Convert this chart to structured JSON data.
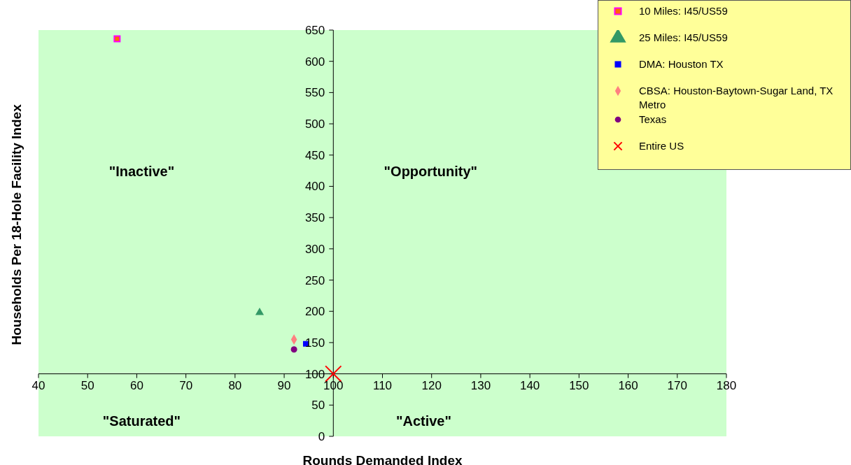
{
  "chart_data": {
    "type": "scatter",
    "xlabel": "Rounds Demanded Index",
    "ylabel": "Households Per 18-Hole Facility Index",
    "xlim": [
      40,
      180
    ],
    "xticks": [
      40,
      50,
      60,
      70,
      80,
      90,
      100,
      110,
      120,
      130,
      140,
      150,
      160,
      170,
      180
    ],
    "ylim": [
      0,
      650
    ],
    "yticks": [
      0,
      50,
      100,
      150,
      200,
      250,
      300,
      350,
      400,
      450,
      500,
      550,
      600,
      650
    ],
    "grid": false,
    "legend": "top right",
    "series": [
      {
        "name": "10 Miles: I45/US59",
        "color": "#ff6600",
        "marker": "square",
        "x": [
          56
        ],
        "values": [
          636
        ]
      },
      {
        "name": "25 Miles: I45/US59",
        "color": "#339966",
        "marker": "triangle",
        "x": [
          85
        ],
        "values": [
          198
        ]
      },
      {
        "name": "DMA: Houston TX",
        "color": "#0000ff",
        "marker": "square",
        "x": [
          94.4
        ],
        "values": [
          148
        ]
      },
      {
        "name": "CBSA: Houston-Baytown-Sugar Land, TX Metro",
        "color": "#ff8080",
        "marker": "diamond",
        "x": [
          92
        ],
        "values": [
          155
        ]
      },
      {
        "name": "Texas",
        "color": "#800080",
        "marker": "circle",
        "x": [
          92
        ],
        "values": [
          139
        ]
      },
      {
        "name": "Entire US",
        "color": "#ff0000",
        "marker": "cross",
        "x": [
          100
        ],
        "values": [
          100
        ]
      }
    ],
    "annotations": [
      "\"Inactive\"",
      "\"Opportunity\"",
      "\"Saturated\"",
      "\"Active\""
    ]
  }
}
